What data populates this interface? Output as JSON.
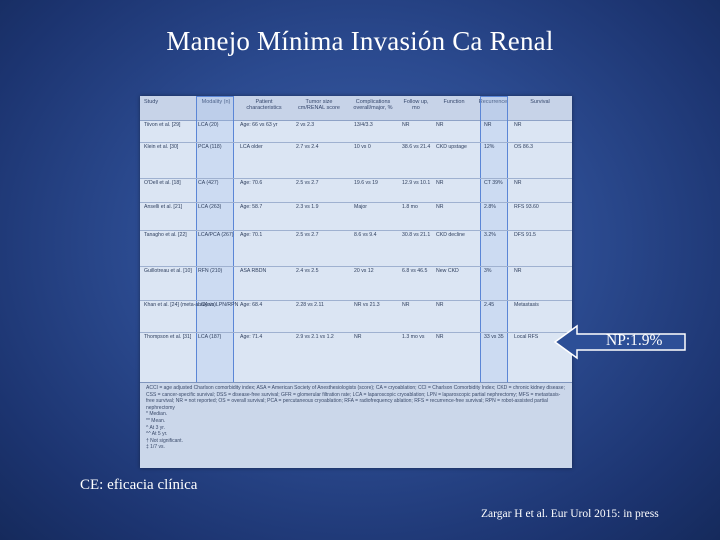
{
  "slide": {
    "title": "Manejo Mínima Invasión Ca Renal",
    "arrow_label": "NP:1.9%",
    "footer_left": "CE: eficacia clínica",
    "citation": "Zargar H et al. Eur Urol 2015: in press",
    "colors": {
      "background": "#2b4a8f",
      "text": "#ffffff",
      "table_background": "#dbe5f3",
      "highlight_box": "#5b86d6"
    }
  },
  "table": {
    "headers": [
      "Study",
      "Modality (n)",
      "Patient characteristics",
      "Tumor size cm/RENAL score",
      "Complications overall/major, %",
      "Follow up, mo",
      "Function",
      "Recurrence",
      "Survival"
    ],
    "rows": [
      [
        "Tiivon et al. [29]",
        "LCA (20)",
        "Age: 66 vs 63 yr",
        "2 vs 2.3",
        "13/4/3.3",
        "NR",
        "NR",
        "NR",
        "NR"
      ],
      [
        "Klein et al. [30]",
        "PCA (118)",
        "LCA older",
        "2.7 vs 2.4",
        "10 vs 0",
        "38.6 vs 21.4",
        "CKD upstage",
        "12%",
        "OS 86.3"
      ],
      [
        "O'Dell et al. [18]",
        "CA (427)",
        "Age: 70.6",
        "2.5 vs 2.7",
        "19.6 vs 19",
        "12.9 vs 10.1",
        "NR",
        "CT 39%",
        "NR"
      ],
      [
        "Anselli et al. [21]",
        "LCA (263)",
        "Age: 58.7",
        "2.3 vs 1.9",
        "Major",
        "1.8 mo",
        "NR",
        "2.8%",
        "RFS 93.60"
      ],
      [
        "Tanagho et al. [22]",
        "LCA/PCA (267)",
        "Age: 70.1",
        "2.5 vs 2.7",
        "8.6 vs 9.4",
        "30.8 vs 21.1",
        "CKD decline",
        "3.2%",
        "DFS 91.5"
      ],
      [
        "Guillotreau et al. [10]",
        "RFN (210)",
        "ASA RBDN",
        "2.4 vs 2.5",
        "20 vs 12",
        "6.8 vs 46.5",
        "New CKD",
        "3%",
        "NR"
      ],
      [
        "Khan et al. [24] (meta-analysis)",
        "LCA vs LPN/RPN",
        "Age: 68.4",
        "2.28 vs 2.11",
        "NR vs 21.3",
        "NR",
        "NR",
        "2.45",
        "Metastasis"
      ],
      [
        "Thompson et al. [31]",
        "LCA (187)",
        "Age: 71.4",
        "2.9 vs 2.1 vs 1.2",
        "NR",
        "1.3 mo vs",
        "NR",
        "33 vs 35",
        "Local RFS"
      ]
    ],
    "footnote_text": "ACCI = age adjusted Charlson comorbidity index; ASA = American Society of Anesthesiologists (score); CA = cryoablation; CCI = Charlson Comorbidity Index; CKD = chronic kidney disease; CSS = cancer-specific survival; DSS = disease-free survival; GFR = glomerular filtration rate; LCA = laparoscopic cryoablation; LPN = laparoscopic partial nephrectomy; MFS = metastasis-free survival; NR = not reported; OS = overall survival; PCA = percutaneous cryoablation; RFA = radiofrequency ablation; RFS = recurrence-free survival; RPN = robot-assisted partial nephrectomy",
    "footnote_marks": [
      "* Median.",
      "** Mean.",
      "^ At 3 yr.",
      "^^ At 5 yr.",
      "† Not significant.",
      "‡ 1/7 vs."
    ]
  }
}
